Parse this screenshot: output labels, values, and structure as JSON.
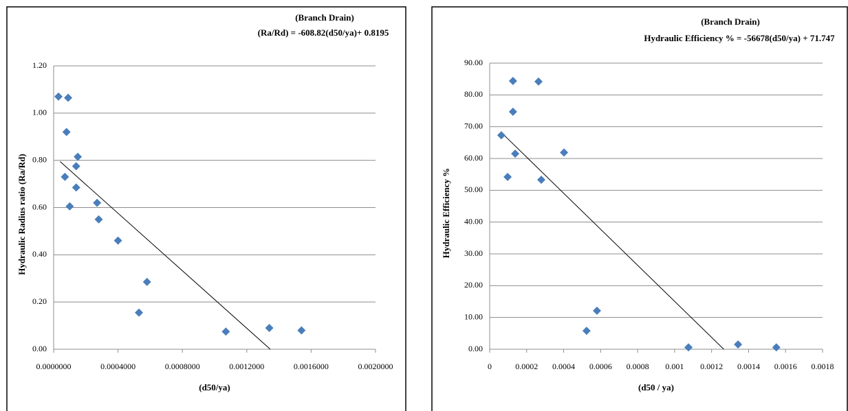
{
  "chart_data": [
    {
      "type": "scatter",
      "title": "(Branch Drain)",
      "subtitle": "(Ra/Rd) = -608.82(d50/ya)+ 0.8195",
      "x_label": "(d50/ya)",
      "y_label": "Hydraulic Radius ratio (Ra/Rd)",
      "color": "#4a7ebb",
      "grid": true,
      "x": [
        3e-05,
        9e-05,
        8e-05,
        7e-05,
        0.0001,
        0.00015,
        0.00014,
        0.00014,
        0.00027,
        0.00028,
        0.0004,
        0.00058,
        0.00053,
        0.00107,
        0.00134,
        0.00154
      ],
      "values": [
        1.07,
        1.065,
        0.92,
        0.73,
        0.605,
        0.815,
        0.775,
        0.685,
        0.62,
        0.55,
        0.46,
        0.285,
        0.155,
        0.075,
        0.09,
        0.08
      ],
      "trendline": {
        "x": [
          4e-05,
          0.001346
        ],
        "values": [
          0.795,
          0
        ]
      },
      "xlim": [
        0,
        0.002
      ],
      "ylim": [
        0,
        1.2
      ],
      "xticks": [
        {
          "value": 0,
          "label": "0.0000000"
        },
        {
          "value": 0.0004,
          "label": "0.0004000"
        },
        {
          "value": 0.0008,
          "label": "0.0008000"
        },
        {
          "value": 0.0012,
          "label": "0.0012000"
        },
        {
          "value": 0.0016,
          "label": "0.0016000"
        },
        {
          "value": 0.002,
          "label": "0.0020000"
        }
      ],
      "yticks": [
        {
          "value": 0,
          "label": "0.00"
        },
        {
          "value": 0.2,
          "label": "0.20"
        },
        {
          "value": 0.4,
          "label": "0.40"
        },
        {
          "value": 0.6,
          "label": "0.60"
        },
        {
          "value": 0.8,
          "label": "0.80"
        },
        {
          "value": 1,
          "label": "1.00"
        },
        {
          "value": 1.2,
          "label": "1.20"
        }
      ]
    },
    {
      "type": "scatter",
      "title": "(Branch Drain)",
      "subtitle": "Hydraulic Efficiency % = -56678(d50/ya) + 71.747",
      "x_label": "(d50 / ya)",
      "y_label": "Hydraulic Efficiency %",
      "color": "#4a7ebb",
      "grid": true,
      "x": [
        6.3e-05,
        9.7e-05,
        0.000126,
        0.000126,
        0.000138,
        0.000264,
        0.000279,
        0.000402,
        0.000524,
        0.00058,
        0.001075,
        0.001343,
        0.00155
      ],
      "values": [
        67.3,
        54.2,
        84.4,
        74.7,
        61.5,
        84.2,
        53.3,
        61.9,
        5.8,
        12.1,
        0.6,
        1.5,
        0.6
      ],
      "trendline": {
        "x": [
          6e-05,
          0.001266
        ],
        "values": [
          68.35,
          0
        ]
      },
      "xlim": [
        0,
        0.0018
      ],
      "ylim": [
        0,
        90
      ],
      "xticks": [
        0,
        0.0002,
        0.0004,
        0.0006,
        0.0008,
        0.001,
        0.0012,
        0.0014,
        0.0016,
        0.0018
      ],
      "yticks": [
        {
          "value": 0,
          "label": "0.00"
        },
        {
          "value": 10,
          "label": "10.00"
        },
        {
          "value": 20,
          "label": "20.00"
        },
        {
          "value": 30,
          "label": "30.00"
        },
        {
          "value": 40,
          "label": "40.00"
        },
        {
          "value": 50,
          "label": "50.00"
        },
        {
          "value": 60,
          "label": "60.00"
        },
        {
          "value": 70,
          "label": "70.00"
        },
        {
          "value": 80,
          "label": "80.00"
        },
        {
          "value": 90,
          "label": "90.00"
        }
      ]
    }
  ]
}
